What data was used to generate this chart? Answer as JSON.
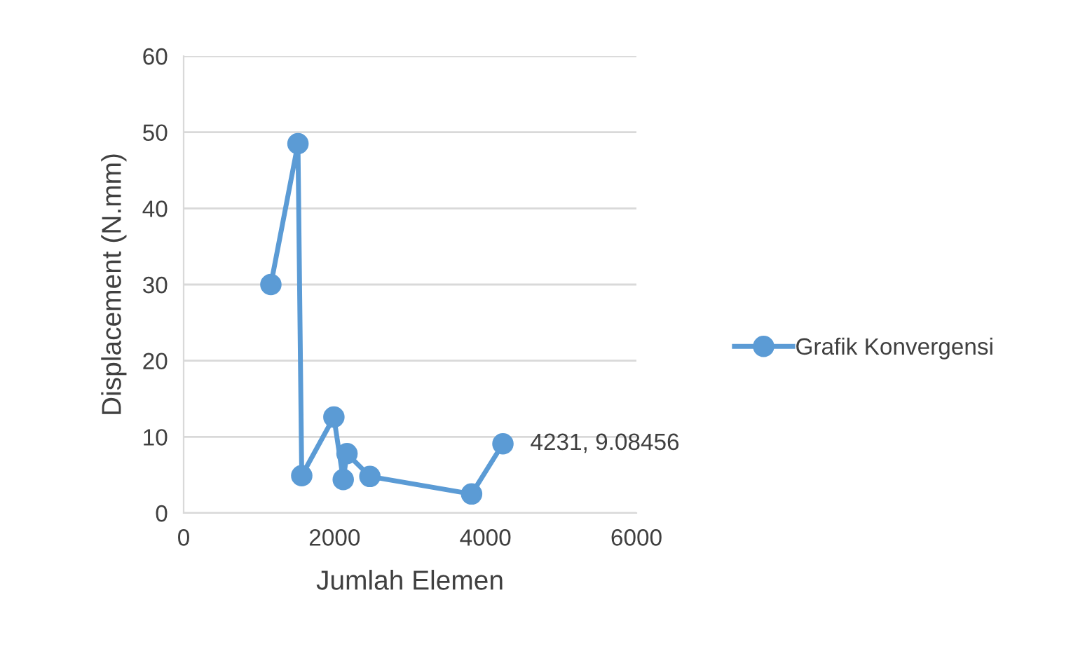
{
  "chart_data": {
    "type": "line",
    "xlabel": "Jumlah Elemen",
    "ylabel": "Displacement (N.mm)",
    "series": [
      {
        "name": "Grafik Konvergensi",
        "color": "#5b9bd5",
        "marker": "circle",
        "line_style": "solid",
        "x": [
          1156,
          1515,
          1565,
          1991,
          2115,
          2165,
          2468,
          3816,
          4231
        ],
        "values": [
          30,
          48.5,
          4.9,
          12.6,
          4.4,
          7.8,
          4.8,
          2.5,
          9.08456
        ]
      }
    ],
    "xlim": [
      0,
      6000
    ],
    "xticks": [
      0,
      2000,
      4000,
      6000
    ],
    "ylim": [
      0,
      60
    ],
    "yticks": [
      0,
      10,
      20,
      30,
      40,
      50,
      60
    ],
    "grid": "y",
    "legend": "right",
    "annotations": [
      {
        "text": "4231, 9.08456",
        "x": 4231,
        "y": 9.08456
      }
    ]
  }
}
